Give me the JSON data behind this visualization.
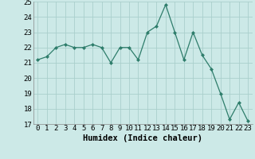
{
  "x": [
    0,
    1,
    2,
    3,
    4,
    5,
    6,
    7,
    8,
    9,
    10,
    11,
    12,
    13,
    14,
    15,
    16,
    17,
    18,
    19,
    20,
    21,
    22,
    23
  ],
  "y": [
    21.2,
    21.4,
    22.0,
    22.2,
    22.0,
    22.0,
    22.2,
    22.0,
    21.0,
    22.0,
    22.0,
    21.2,
    23.0,
    23.4,
    24.8,
    23.0,
    21.2,
    23.0,
    21.5,
    20.6,
    19.0,
    17.3,
    18.4,
    17.2
  ],
  "xlabel": "Humidex (Indice chaleur)",
  "xlim": [
    -0.5,
    23.5
  ],
  "ylim": [
    17,
    25
  ],
  "yticks": [
    17,
    18,
    19,
    20,
    21,
    22,
    23,
    24,
    25
  ],
  "xticks": [
    0,
    1,
    2,
    3,
    4,
    5,
    6,
    7,
    8,
    9,
    10,
    11,
    12,
    13,
    14,
    15,
    16,
    17,
    18,
    19,
    20,
    21,
    22,
    23
  ],
  "line_color": "#2e7d6b",
  "marker_color": "#2e7d6b",
  "bg_color": "#cce9e7",
  "grid_color": "#aacfcc",
  "xlabel_fontsize": 7.5,
  "tick_fontsize": 6.5
}
